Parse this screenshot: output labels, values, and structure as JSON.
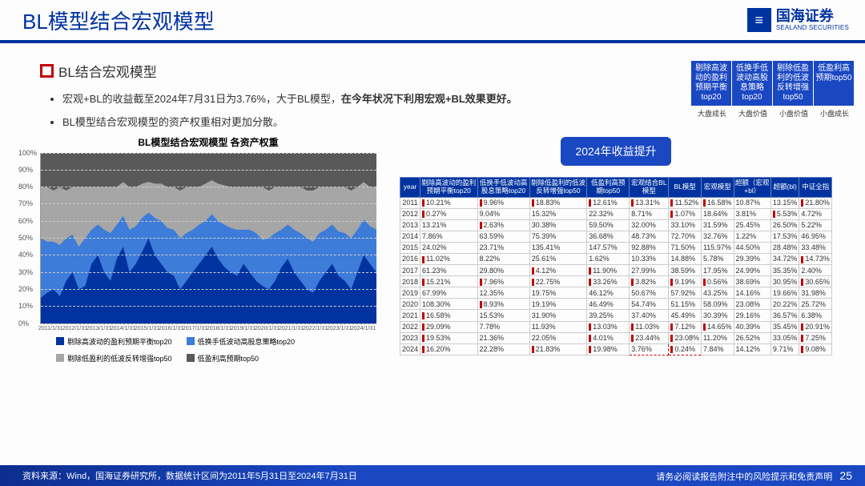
{
  "title": "BL模型结合宏观模型",
  "logo": {
    "cn": "国海证券",
    "en": "SEALAND SECURITIES"
  },
  "section_title": "BL结合宏观模型",
  "bullets": [
    {
      "pre": "宏观+BL的收益截至2024年7月31日为3.76%，大于BL模型，",
      "bold": "在今年状况下利用宏观+BL效果更好。"
    },
    {
      "pre": "BL模型结合宏观模型的资产权重相对更加分散。",
      "bold": ""
    }
  ],
  "tags": [
    "剔除高波动的盈利预期平衡top20",
    "低换手低波动高股息策略top20",
    "剔除低盈利的低波反转增强top50",
    "低盈利高预期top50"
  ],
  "cats": [
    "大盘成长",
    "大盘价值",
    "小盘价值",
    "小盘成长"
  ],
  "badge": "2024年收益提升",
  "chart": {
    "title": "BL模型结合宏观模型\n各资产权重",
    "ylim": [
      0,
      100
    ],
    "yticks": [
      0,
      10,
      20,
      30,
      40,
      50,
      60,
      70,
      80,
      90,
      100
    ],
    "xticks": [
      "2011/1/31",
      "2012/1/31",
      "2013/1/31",
      "2014/1/31",
      "2015/1/31",
      "2016/1/31",
      "2017/1/31",
      "2018/1/31",
      "2019/1/31",
      "2020/1/31",
      "2021/1/31",
      "2022/1/31",
      "2023/1/31",
      "2024/1/31"
    ],
    "series": [
      {
        "name": "剔除高波动的盈利预期平衡top20",
        "color": "#0033a0"
      },
      {
        "name": "低换手低波动高股息策略top20",
        "color": "#3d7cd9"
      },
      {
        "name": "剔除低盈利的低波反转增强top50",
        "color": "#a6a6a6"
      },
      {
        "name": "低盈利高预期top50",
        "color": "#595959"
      }
    ],
    "stacks": [
      [
        15,
        35,
        30,
        20
      ],
      [
        18,
        30,
        32,
        20
      ],
      [
        20,
        28,
        30,
        22
      ],
      [
        16,
        30,
        34,
        20
      ],
      [
        25,
        25,
        28,
        22
      ],
      [
        30,
        22,
        28,
        20
      ],
      [
        20,
        25,
        35,
        20
      ],
      [
        22,
        28,
        30,
        20
      ],
      [
        35,
        20,
        25,
        20
      ],
      [
        40,
        18,
        22,
        20
      ],
      [
        30,
        25,
        25,
        20
      ],
      [
        25,
        28,
        27,
        20
      ],
      [
        38,
        20,
        22,
        20
      ],
      [
        45,
        18,
        20,
        17
      ],
      [
        30,
        25,
        25,
        20
      ],
      [
        35,
        22,
        23,
        20
      ],
      [
        42,
        20,
        20,
        18
      ],
      [
        50,
        15,
        18,
        17
      ],
      [
        40,
        22,
        20,
        18
      ],
      [
        35,
        25,
        22,
        18
      ],
      [
        30,
        26,
        24,
        20
      ],
      [
        28,
        27,
        25,
        20
      ],
      [
        20,
        30,
        28,
        22
      ],
      [
        25,
        28,
        27,
        20
      ],
      [
        30,
        25,
        25,
        20
      ],
      [
        35,
        23,
        22,
        20
      ],
      [
        40,
        20,
        22,
        18
      ],
      [
        45,
        19,
        20,
        16
      ],
      [
        38,
        22,
        22,
        18
      ],
      [
        33,
        25,
        23,
        19
      ],
      [
        30,
        26,
        24,
        20
      ],
      [
        28,
        27,
        25,
        20
      ],
      [
        35,
        20,
        25,
        20
      ],
      [
        30,
        25,
        25,
        20
      ],
      [
        25,
        28,
        27,
        20
      ],
      [
        22,
        27,
        31,
        20
      ],
      [
        20,
        30,
        28,
        22
      ],
      [
        25,
        28,
        27,
        20
      ],
      [
        33,
        22,
        25,
        20
      ],
      [
        38,
        20,
        22,
        20
      ],
      [
        30,
        25,
        25,
        20
      ],
      [
        25,
        28,
        27,
        20
      ],
      [
        20,
        30,
        28,
        22
      ],
      [
        18,
        30,
        30,
        22
      ],
      [
        25,
        28,
        27,
        20
      ],
      [
        30,
        25,
        25,
        20
      ],
      [
        35,
        23,
        22,
        20
      ],
      [
        28,
        26,
        26,
        20
      ],
      [
        25,
        28,
        27,
        20
      ],
      [
        20,
        30,
        28,
        22
      ],
      [
        30,
        25,
        25,
        20
      ],
      [
        40,
        21,
        22,
        17
      ],
      [
        35,
        22,
        23,
        20
      ],
      [
        30,
        25,
        25,
        20
      ]
    ]
  },
  "table": {
    "head": [
      "year",
      "剔除高波动的盈利预期平衡top20",
      "低换手低波动高股息策略top20",
      "剔除低盈利的低波反转增强top50",
      "低盈利高预期top50",
      "宏观结合BL模型",
      "BL模型",
      "宏观模型",
      "超额（宏观+bl）",
      "超额(bl)",
      "中证全指"
    ],
    "rows": [
      [
        "2011",
        "-10.21%",
        "-9.96%",
        "-18.83%",
        "-12.61%",
        "-13.31%",
        "-11.52%",
        "-16.58%",
        "10.87%",
        "13.15%",
        "-21.80%"
      ],
      [
        "2012",
        "-0.27%",
        "9.04%",
        "15.32%",
        "22.32%",
        "8.71%",
        "-1.07%",
        "18.64%",
        "3.81%",
        "-5.53%",
        "4.72%"
      ],
      [
        "2013",
        "13.21%",
        "-2.63%",
        "30.38%",
        "59.50%",
        "32.00%",
        "33.10%",
        "31.59%",
        "25.45%",
        "26.50%",
        "5.22%"
      ],
      [
        "2014",
        "7.86%",
        "63.59%",
        "75.39%",
        "36.68%",
        "48.73%",
        "72.70%",
        "32.76%",
        "1.22%",
        "17.53%",
        "46.95%"
      ],
      [
        "2015",
        "24.02%",
        "23.71%",
        "135.41%",
        "147.57%",
        "92.88%",
        "71.50%",
        "115.97%",
        "44.50%",
        "28.48%",
        "33.48%"
      ],
      [
        "2016",
        "-11.02%",
        "8.22%",
        "25.61%",
        "1.62%",
        "10.33%",
        "14.88%",
        "5.78%",
        "29.39%",
        "34.72%",
        "-14.73%"
      ],
      [
        "2017",
        "61.23%",
        "29.80%",
        "-4.12%",
        "-11.90%",
        "27.99%",
        "38.59%",
        "17.95%",
        "24.99%",
        "35.35%",
        "2.40%"
      ],
      [
        "2018",
        "-15.21%",
        "-7.96%",
        "-22.75%",
        "-33.26%",
        "-3.82%",
        "-9.19%",
        "-0.56%",
        "38.69%",
        "30.95%",
        "-30.65%"
      ],
      [
        "2019",
        "67.99%",
        "12.35%",
        "19.75%",
        "46.12%",
        "50.67%",
        "57.92%",
        "43.25%",
        "14.16%",
        "19.66%",
        "31.98%"
      ],
      [
        "2020",
        "108.30%",
        "-8.93%",
        "19.19%",
        "46.49%",
        "54.74%",
        "51.15%",
        "58.09%",
        "23.08%",
        "20.22%",
        "25.72%"
      ],
      [
        "2021",
        "-16.58%",
        "15.53%",
        "31.90%",
        "39.25%",
        "37.40%",
        "45.49%",
        "30.39%",
        "29.16%",
        "36.57%",
        "6.38%"
      ],
      [
        "2022",
        "-29.09%",
        "7.78%",
        "11.93%",
        "-13.03%",
        "-11.03%",
        "-7.12%",
        "-14.65%",
        "40.39%",
        "35.45%",
        "-20.91%"
      ],
      [
        "2023",
        "-19.53%",
        "21.36%",
        "22.05%",
        "-4.01%",
        "-23.44%",
        "-23.08%",
        "11.20%",
        "26.52%",
        "33.05%",
        "-7.25%"
      ],
      [
        "2024",
        "-16.20%",
        "22.28%",
        "-21.83%",
        "-19.98%",
        "3.76%",
        "-0.24%",
        "7.84%",
        "14.12%",
        "9.71%",
        "-9.08%"
      ]
    ],
    "highlight": {
      "row": 13,
      "cols": [
        5,
        6
      ]
    }
  },
  "footer": {
    "left": "资料来源：Wind，国海证券研究所，数据统计区间为2011年5月31日至2024年7月31日",
    "right": "请务必阅读报告附注中的风险提示和免责声明",
    "page": "25"
  }
}
